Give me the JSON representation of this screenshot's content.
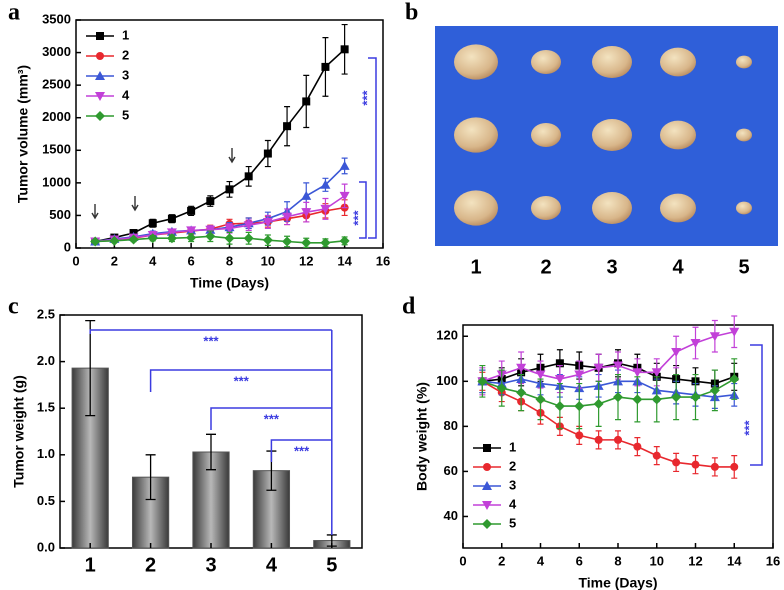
{
  "chart_data": [
    {
      "type": "line",
      "panel_label": "a",
      "x_label": "Time (Days)",
      "y_label": "Tumor volume (mm³)",
      "xlim": [
        0,
        16
      ],
      "xticks": [
        0,
        2,
        4,
        6,
        8,
        10,
        12,
        14,
        16
      ],
      "ylim": [
        0,
        3500
      ],
      "yticks": [
        0,
        500,
        1000,
        1500,
        2000,
        2500,
        3000,
        3500
      ],
      "legend": "upper left",
      "x": [
        1,
        2,
        3,
        4,
        5,
        6,
        7,
        8,
        9,
        10,
        11,
        12,
        13,
        14
      ],
      "series": [
        {
          "name": "1",
          "color": "#000000",
          "marker": "square",
          "values": [
            100,
            160,
            230,
            380,
            450,
            570,
            720,
            900,
            1100,
            1450,
            1870,
            2250,
            2780,
            3050
          ],
          "errors": [
            30,
            30,
            40,
            60,
            60,
            70,
            80,
            120,
            150,
            200,
            300,
            400,
            450,
            380
          ]
        },
        {
          "name": "2",
          "color": "#e8282e",
          "marker": "circle",
          "values": [
            100,
            120,
            150,
            200,
            230,
            260,
            290,
            370,
            380,
            400,
            450,
            500,
            570,
            620
          ],
          "errors": [
            20,
            20,
            30,
            40,
            40,
            50,
            60,
            70,
            80,
            80,
            90,
            100,
            110,
            120
          ]
        },
        {
          "name": "3",
          "color": "#3b57d6",
          "marker": "triangle-up",
          "values": [
            100,
            140,
            170,
            220,
            250,
            270,
            280,
            320,
            380,
            450,
            560,
            800,
            970,
            1260
          ],
          "errors": [
            20,
            20,
            30,
            40,
            40,
            50,
            60,
            70,
            80,
            100,
            150,
            200,
            100,
            120
          ]
        },
        {
          "name": "4",
          "color": "#c240d8",
          "marker": "triangle-down",
          "values": [
            100,
            130,
            160,
            200,
            240,
            270,
            280,
            300,
            350,
            400,
            480,
            550,
            600,
            800
          ],
          "errors": [
            20,
            20,
            30,
            40,
            40,
            50,
            60,
            70,
            80,
            100,
            120,
            150,
            160,
            180
          ]
        },
        {
          "name": "5",
          "color": "#2f9a2f",
          "marker": "diamond",
          "values": [
            100,
            110,
            130,
            150,
            150,
            160,
            180,
            150,
            150,
            120,
            100,
            80,
            80,
            110
          ],
          "errors": [
            20,
            20,
            30,
            40,
            50,
            60,
            80,
            90,
            90,
            80,
            80,
            70,
            60,
            60
          ]
        }
      ],
      "annotations": [
        "***",
        "***"
      ]
    },
    {
      "type": "bar",
      "panel_label": "c",
      "y_label": "Tumor weight (g)",
      "categories": [
        "1",
        "2",
        "3",
        "4",
        "5"
      ],
      "values": [
        1.93,
        0.76,
        1.03,
        0.83,
        0.08
      ],
      "errors": [
        0.51,
        0.24,
        0.19,
        0.21,
        0.06
      ],
      "color": "#555555",
      "ylim": [
        0,
        2.5
      ],
      "yticks": [
        {
          "value": 0,
          "label": "0.0"
        },
        0.5,
        {
          "value": 1,
          "label": "1.0"
        },
        1.5,
        {
          "value": 2,
          "label": "2.0"
        },
        2.5
      ],
      "annotations": [
        "***",
        "***",
        "***",
        "***"
      ]
    },
    {
      "type": "line",
      "panel_label": "d",
      "x_label": "Time (Days)",
      "y_label": "Body weight (%)",
      "xlim": [
        0,
        16
      ],
      "xticks": [
        0,
        2,
        4,
        6,
        8,
        10,
        12,
        14,
        16
      ],
      "ylim": [
        26,
        125
      ],
      "yticks": [
        40,
        60,
        80,
        100,
        120
      ],
      "legend": "lower left",
      "x": [
        1,
        2,
        3,
        4,
        5,
        6,
        7,
        8,
        9,
        10,
        11,
        12,
        13,
        14
      ],
      "series": [
        {
          "name": "1",
          "color": "#000000",
          "marker": "square",
          "values": [
            100,
            101,
            104,
            106,
            108,
            107,
            106,
            108,
            106,
            102,
            101,
            100,
            99,
            102
          ],
          "errors": [
            5,
            5,
            6,
            6,
            6,
            6,
            6,
            6,
            6,
            6,
            6,
            6,
            6,
            6
          ]
        },
        {
          "name": "2",
          "color": "#e8282e",
          "marker": "circle",
          "values": [
            100,
            95,
            91,
            86,
            80,
            76,
            74,
            74,
            71,
            67,
            64,
            63,
            62,
            62
          ],
          "errors": [
            4,
            4,
            4,
            5,
            4,
            4,
            4,
            4,
            4,
            4,
            4,
            4,
            4,
            5
          ]
        },
        {
          "name": "3",
          "color": "#3b57d6",
          "marker": "triangle-up",
          "values": [
            100,
            99,
            101,
            99,
            98,
            97,
            98,
            100,
            100,
            96,
            95,
            94,
            93,
            94
          ],
          "errors": [
            5,
            5,
            5,
            5,
            5,
            5,
            5,
            5,
            5,
            5,
            5,
            5,
            5,
            5
          ]
        },
        {
          "name": "4",
          "color": "#c240d8",
          "marker": "triangle-down",
          "values": [
            100,
            103,
            106,
            103,
            101,
            103,
            106,
            107,
            104,
            104,
            113,
            117,
            120,
            122
          ],
          "errors": [
            6,
            6,
            7,
            6,
            6,
            6,
            6,
            6,
            6,
            6,
            7,
            7,
            7,
            7
          ]
        },
        {
          "name": "5",
          "color": "#2f9a2f",
          "marker": "diamond",
          "values": [
            100,
            97,
            95,
            92,
            89,
            89,
            90,
            93,
            92,
            92,
            93,
            93,
            96,
            101
          ],
          "errors": [
            7,
            8,
            8,
            9,
            10,
            10,
            10,
            10,
            10,
            10,
            10,
            10,
            9,
            9
          ]
        }
      ],
      "annotations": [
        "***"
      ]
    }
  ],
  "photo_panel": {
    "panel_label": "b",
    "labels": [
      "1",
      "2",
      "3",
      "4",
      "5"
    ]
  }
}
